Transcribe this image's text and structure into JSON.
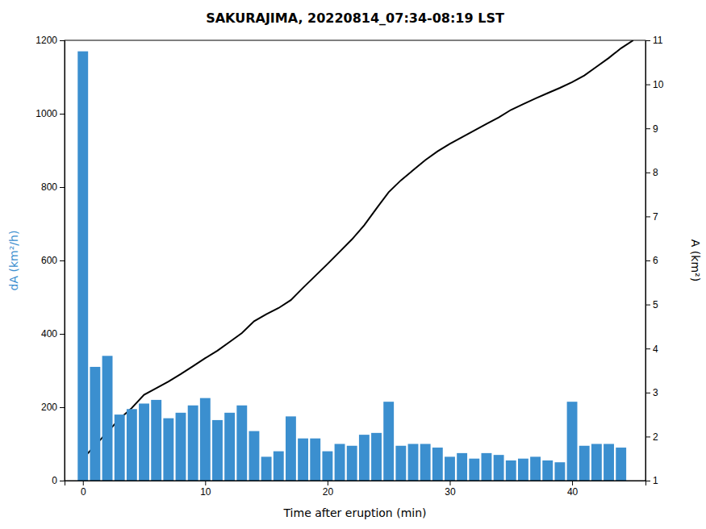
{
  "chart_data": {
    "type": "bar",
    "title": "SAKURAJIMA, 20220814_07:34-08:19 LST",
    "xlabel": "Time after eruption (min)",
    "ylabel": "dA (km²/h)",
    "y2label": "A (km²)",
    "xlim": [
      -1.5,
      46
    ],
    "xticks": [
      0,
      10,
      20,
      30,
      40
    ],
    "ylim": [
      0,
      1200
    ],
    "yticks": [
      0,
      200,
      400,
      600,
      800,
      1000,
      1200
    ],
    "y2lim": [
      1,
      11
    ],
    "y2ticks": [
      1,
      2,
      3,
      4,
      5,
      6,
      7,
      8,
      9,
      10,
      11
    ],
    "grid": false,
    "series": [
      {
        "type": "bar",
        "color": "#3b8fcf",
        "x": [
          0,
          1,
          2,
          3,
          4,
          5,
          6,
          7,
          8,
          9,
          10,
          11,
          12,
          13,
          14,
          15,
          16,
          17,
          18,
          19,
          20,
          21,
          22,
          23,
          24,
          25,
          26,
          27,
          28,
          29,
          30,
          31,
          32,
          33,
          34,
          35,
          36,
          37,
          38,
          39,
          40,
          41,
          42,
          43,
          44
        ],
        "values": [
          1170,
          310,
          340,
          180,
          195,
          210,
          220,
          170,
          185,
          205,
          225,
          165,
          185,
          205,
          135,
          65,
          80,
          175,
          115,
          115,
          80,
          100,
          95,
          125,
          130,
          215,
          95,
          100,
          100,
          90,
          65,
          75,
          60,
          75,
          70,
          55,
          60,
          65,
          55,
          50,
          215,
          95,
          100,
          100,
          90
        ]
      },
      {
        "type": "line",
        "color": "#000000",
        "axis": "y2",
        "x": [
          0,
          1,
          2,
          3,
          4,
          5,
          6,
          7,
          8,
          9,
          10,
          11,
          12,
          13,
          14,
          15,
          16,
          17,
          18,
          19,
          20,
          21,
          22,
          23,
          24,
          25,
          26,
          27,
          28,
          29,
          30,
          31,
          32,
          33,
          34,
          35,
          36,
          37,
          38,
          39,
          40,
          41,
          42,
          43,
          44,
          45
        ],
        "values": [
          1.5,
          1.8,
          2.1,
          2.4,
          2.65,
          2.95,
          3.1,
          3.25,
          3.42,
          3.6,
          3.78,
          3.95,
          4.15,
          4.35,
          4.62,
          4.78,
          4.92,
          5.1,
          5.38,
          5.65,
          5.92,
          6.2,
          6.48,
          6.8,
          7.18,
          7.55,
          7.82,
          8.05,
          8.28,
          8.48,
          8.65,
          8.8,
          8.95,
          9.1,
          9.25,
          9.42,
          9.55,
          9.68,
          9.8,
          9.92,
          10.05,
          10.2,
          10.4,
          10.6,
          10.82,
          11.0
        ]
      }
    ]
  }
}
